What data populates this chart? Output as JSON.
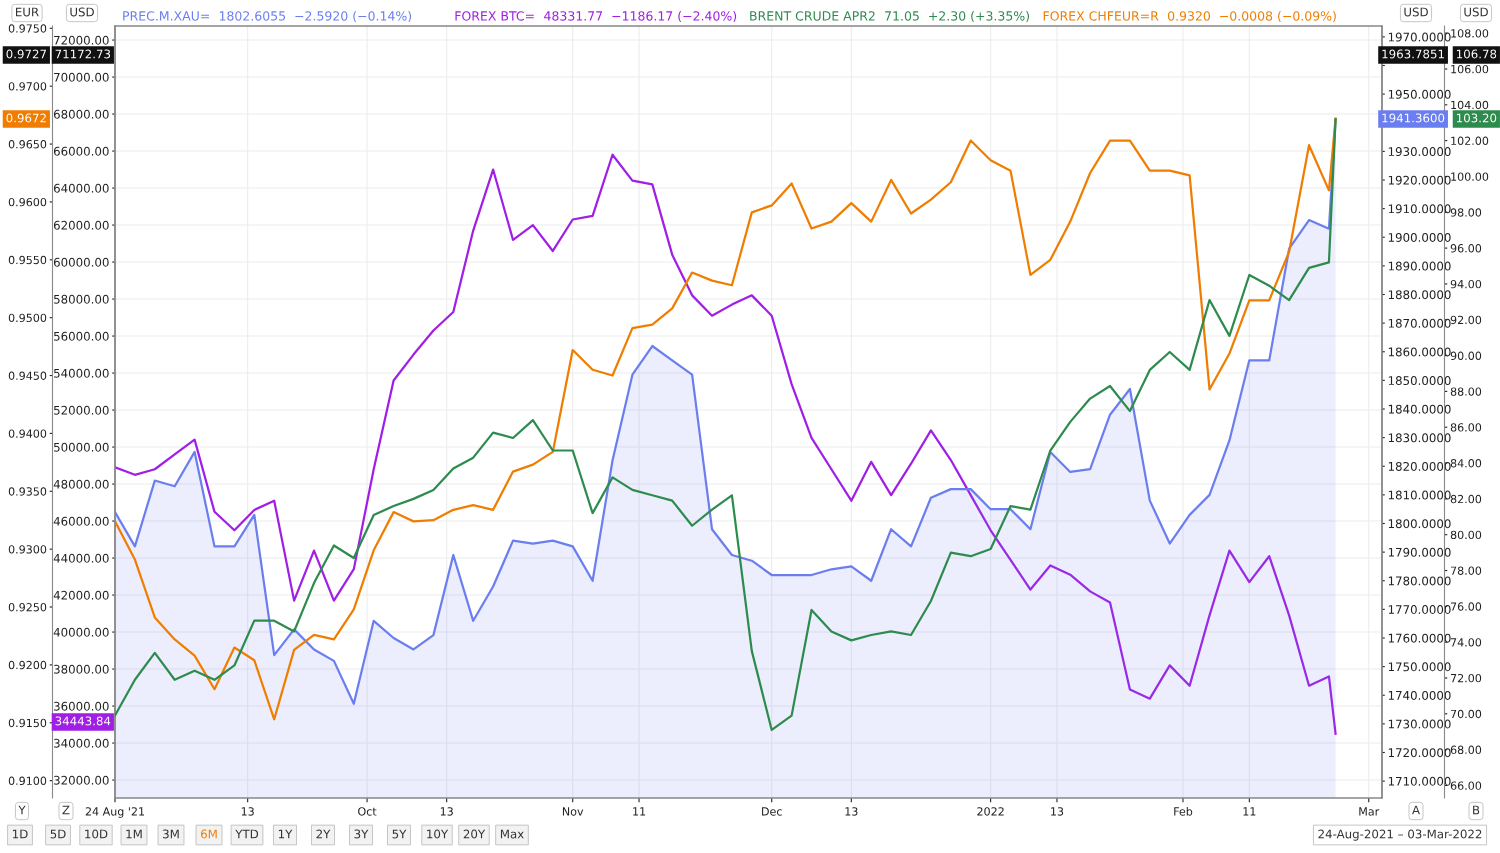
{
  "chart_data": [
    {
      "type": "line",
      "legend": "top",
      "grid": true,
      "x": [
        "2021-08-24",
        "2021-08-27",
        "2021-08-30",
        "2021-09-02",
        "2021-09-05",
        "2021-09-08",
        "2021-09-11",
        "2021-09-14",
        "2021-09-17",
        "2021-09-20",
        "2021-09-23",
        "2021-09-26",
        "2021-09-29",
        "2021-10-02",
        "2021-10-05",
        "2021-10-08",
        "2021-10-11",
        "2021-10-14",
        "2021-10-17",
        "2021-10-20",
        "2021-10-23",
        "2021-10-26",
        "2021-10-29",
        "2021-11-01",
        "2021-11-04",
        "2021-11-07",
        "2021-11-10",
        "2021-11-13",
        "2021-11-16",
        "2021-11-19",
        "2021-11-22",
        "2021-11-25",
        "2021-11-28",
        "2021-12-01",
        "2021-12-04",
        "2021-12-07",
        "2021-12-10",
        "2021-12-13",
        "2021-12-16",
        "2021-12-19",
        "2021-12-22",
        "2021-12-25",
        "2021-12-28",
        "2021-12-31",
        "2022-01-03",
        "2022-01-06",
        "2022-01-09",
        "2022-01-12",
        "2022-01-15",
        "2022-01-18",
        "2022-01-21",
        "2022-01-24",
        "2022-01-27",
        "2022-01-30",
        "2022-02-02",
        "2022-02-05",
        "2022-02-08",
        "2022-02-11",
        "2022-02-14",
        "2022-02-17",
        "2022-02-20",
        "2022-02-23",
        "2022-02-24"
      ],
      "series": [
        {
          "name": "PREC.M.XAU=",
          "type": "area",
          "axis": "y2",
          "color": "#6a7ef0",
          "values": [
            1804,
            1792,
            1815,
            1813,
            1825,
            1792,
            1792,
            1803,
            1754,
            1763,
            1756,
            1752,
            1737,
            1766,
            1760,
            1756,
            1761,
            1789,
            1766,
            1778,
            1794,
            1793,
            1794,
            1792,
            1780,
            1822,
            1852,
            1862,
            1857,
            1852,
            1798,
            1789,
            1787,
            1782,
            1782,
            1782,
            1784,
            1785,
            1780,
            1798,
            1792,
            1809,
            1812,
            1812,
            1805,
            1805,
            1798,
            1825,
            1818,
            1819,
            1838,
            1847,
            1808,
            1793,
            1803,
            1810,
            1829,
            1857,
            1857,
            1896,
            1906,
            1903,
            1941
          ]
        },
        {
          "name": "FOREX BTC=",
          "color": "#a01ee6",
          "values": [
            48900,
            48500,
            48800,
            49600,
            50400,
            46500,
            45500,
            46600,
            47100,
            41700,
            44400,
            41700,
            43400,
            48800,
            53600,
            55000,
            56300,
            57300,
            61700,
            65000,
            61200,
            62000,
            60600,
            62300,
            62500,
            65800,
            64400,
            64200,
            60400,
            58200,
            57100,
            57700,
            58200,
            57100,
            53400,
            50500,
            48800,
            47100,
            49200,
            47400,
            49100,
            50900,
            49300,
            47400,
            45500,
            43900,
            42300,
            43600,
            43100,
            42200,
            41600,
            36900,
            36400,
            38200,
            37100,
            40900,
            44400,
            42700,
            44100,
            40900,
            37100,
            37600,
            34500
          ]
        }
      ],
      "xlim": [
        "2021-08-24",
        "2022-03-03"
      ],
      "xticks": [
        {
          "value": "2021-08-24",
          "label": "24 Aug '21"
        },
        {
          "value": "2021-09-13",
          "label": "13"
        },
        {
          "value": "2021-10-01",
          "label": "Oct"
        },
        {
          "value": "2021-10-13",
          "label": "13"
        },
        {
          "value": "2021-11-01",
          "label": "Nov"
        },
        {
          "value": "2021-11-11",
          "label": "11"
        },
        {
          "value": "2021-12-01",
          "label": "Dec"
        },
        {
          "value": "2021-12-13",
          "label": "13"
        },
        {
          "value": "2022-01-03",
          "label": "2022"
        },
        {
          "value": "2022-01-13",
          "label": "13"
        },
        {
          "value": "2022-02-01",
          "label": "Feb"
        },
        {
          "value": "2022-02-11",
          "label": "11"
        },
        {
          "value": "2022-03-01",
          "label": "Mar"
        }
      ],
      "ylim": [
        31030,
        72760
      ],
      "yticks": [
        {
          "value": 32000,
          "label": "32000.00"
        },
        {
          "value": 34000,
          "label": "34000.00"
        },
        {
          "value": 36000,
          "label": "36000.00"
        },
        {
          "value": 38000,
          "label": "38000.00"
        },
        {
          "value": 40000,
          "label": "40000.00"
        },
        {
          "value": 42000,
          "label": "42000.00"
        },
        {
          "value": 44000,
          "label": "44000.00"
        },
        {
          "value": 46000,
          "label": "46000.00"
        },
        {
          "value": 48000,
          "label": "48000.00"
        },
        {
          "value": 50000,
          "label": "50000.00"
        },
        {
          "value": 52000,
          "label": "52000.00"
        },
        {
          "value": 54000,
          "label": "54000.00"
        },
        {
          "value": 56000,
          "label": "56000.00"
        },
        {
          "value": 58000,
          "label": "58000.00"
        },
        {
          "value": 60000,
          "label": "60000.00"
        },
        {
          "value": 62000,
          "label": "62000.00"
        },
        {
          "value": 64000,
          "label": "64000.00"
        },
        {
          "value": 66000,
          "label": "66000.00"
        },
        {
          "value": 68000,
          "label": "68000.00"
        },
        {
          "value": 70000,
          "label": "70000.00"
        },
        {
          "value": 72000,
          "label": "72000.00"
        }
      ],
      "y2lim": [
        1704.1,
        1973.8
      ],
      "y2ticks": [
        {
          "value": 1710,
          "label": "1710.0000"
        },
        {
          "value": 1720,
          "label": "1720.0000"
        },
        {
          "value": 1730,
          "label": "1730.0000"
        },
        {
          "value": 1740,
          "label": "1740.0000"
        },
        {
          "value": 1750,
          "label": "1750.0000"
        },
        {
          "value": 1760,
          "label": "1760.0000"
        },
        {
          "value": 1770,
          "label": "1770.0000"
        },
        {
          "value": 1780,
          "label": "1780.0000"
        },
        {
          "value": 1790,
          "label": "1790.0000"
        },
        {
          "value": 1800,
          "label": "1800.0000"
        },
        {
          "value": 1810,
          "label": "1810.0000"
        },
        {
          "value": 1820,
          "label": "1820.0000"
        },
        {
          "value": 1830,
          "label": "1830.0000"
        },
        {
          "value": 1840,
          "label": "1840.0000"
        },
        {
          "value": 1850,
          "label": "1850.0000"
        },
        {
          "value": 1860,
          "label": "1860.0000"
        },
        {
          "value": 1870,
          "label": "1870.0000"
        },
        {
          "value": 1880,
          "label": "1880.0000"
        },
        {
          "value": 1890,
          "label": "1890.0000"
        },
        {
          "value": 1900,
          "label": "1900.0000"
        },
        {
          "value": 1910,
          "label": "1910.0000"
        },
        {
          "value": 1920,
          "label": "1920.0000"
        },
        {
          "value": 1930,
          "label": "1930.0000"
        },
        {
          "value": 1940,
          "label": null
        },
        {
          "value": 1950,
          "label": "1950.0000"
        },
        {
          "value": 1960,
          "label": null
        },
        {
          "value": 1970,
          "label": "1970.0000"
        }
      ],
      "annotations": [
        "1802.6055  −2.5920 (−0.14%)",
        "48331.77  −1186.17 (−2.40%)",
        "71.05  +2.30 (+3.35%)",
        "0.9320  −0.0008 (−0.09%)",
        "0.9727",
        "71172.73",
        "1963.7851",
        "106.78",
        "0.9672",
        "34443.84",
        "1941.3600",
        "103.20",
        "EUR",
        "USD",
        "USD",
        "USD",
        "Y",
        "Z",
        "A",
        "B",
        "1D",
        "5D",
        "10D",
        "1M",
        "3M",
        "6M",
        "YTD",
        "1Y",
        "2Y",
        "3Y",
        "5Y",
        "10Y",
        "20Y",
        "Max",
        "24-Aug-2021 – 03-Mar-2022"
      ]
    },
    {
      "type": "line",
      "legend": "top",
      "tick_labels": "y",
      "x": [
        "2021-08-24",
        "2021-08-27",
        "2021-08-30",
        "2021-09-02",
        "2021-09-05",
        "2021-09-08",
        "2021-09-11",
        "2021-09-14",
        "2021-09-17",
        "2021-09-20",
        "2021-09-23",
        "2021-09-26",
        "2021-09-29",
        "2021-10-02",
        "2021-10-05",
        "2021-10-08",
        "2021-10-11",
        "2021-10-14",
        "2021-10-17",
        "2021-10-20",
        "2021-10-23",
        "2021-10-26",
        "2021-10-29",
        "2021-11-01",
        "2021-11-04",
        "2021-11-07",
        "2021-11-10",
        "2021-11-13",
        "2021-11-16",
        "2021-11-19",
        "2021-11-22",
        "2021-11-25",
        "2021-11-28",
        "2021-12-01",
        "2021-12-04",
        "2021-12-07",
        "2021-12-10",
        "2021-12-13",
        "2021-12-16",
        "2021-12-19",
        "2021-12-22",
        "2021-12-25",
        "2021-12-28",
        "2021-12-31",
        "2022-01-03",
        "2022-01-06",
        "2022-01-09",
        "2022-01-12",
        "2022-01-15",
        "2022-01-18",
        "2022-01-21",
        "2022-01-24",
        "2022-01-27",
        "2022-01-30",
        "2022-02-02",
        "2022-02-05",
        "2022-02-08",
        "2022-02-11",
        "2022-02-14",
        "2022-02-17",
        "2022-02-20",
        "2022-02-23",
        "2022-02-24"
      ],
      "series": [
        {
          "name": "BRENT CRUDE APR2",
          "axis": "y2",
          "color": "#2e8b4e",
          "values": [
            69.9,
            71.9,
            73.4,
            71.9,
            72.4,
            71.9,
            72.7,
            75.2,
            75.2,
            74.6,
            77.3,
            79.4,
            78.7,
            81.1,
            81.6,
            82.0,
            82.5,
            83.7,
            84.3,
            85.7,
            85.4,
            86.4,
            84.7,
            84.7,
            81.2,
            83.2,
            82.5,
            82.2,
            81.9,
            80.5,
            81.4,
            82.2,
            73.5,
            69.1,
            69.9,
            75.8,
            74.6,
            74.1,
            74.4,
            74.6,
            74.4,
            76.3,
            79.0,
            78.8,
            79.2,
            81.6,
            81.4,
            84.7,
            86.3,
            87.6,
            88.3,
            86.9,
            89.2,
            90.2,
            89.2,
            93.1,
            91.1,
            94.5,
            93.9,
            93.1,
            94.9,
            95.2,
            103.2
          ]
        },
        {
          "name": "FOREX CHFEUR=R",
          "color": "#f07d00",
          "values": [
            0.9324,
            0.9291,
            0.9241,
            0.9222,
            0.9208,
            0.9179,
            0.9215,
            0.9204,
            0.9153,
            0.9213,
            0.9226,
            0.9222,
            0.9248,
            0.9299,
            0.9332,
            0.9324,
            0.9325,
            0.9334,
            0.9338,
            0.9334,
            0.9367,
            0.9373,
            0.9384,
            0.9472,
            0.9455,
            0.945,
            0.9491,
            0.9494,
            0.9508,
            0.9539,
            0.9532,
            0.9528,
            0.9591,
            0.9597,
            0.9616,
            0.9577,
            0.9583,
            0.9599,
            0.9583,
            0.9619,
            0.959,
            0.9602,
            0.9617,
            0.9653,
            0.9636,
            0.9627,
            0.9537,
            0.955,
            0.9583,
            0.9625,
            0.9653,
            0.9653,
            0.9627,
            0.9627,
            0.9623,
            0.9438,
            0.9469,
            0.9515,
            0.9515,
            0.9557,
            0.9649,
            0.961,
            0.9672
          ]
        }
      ],
      "xlim": [
        "2021-08-24",
        "2022-03-03"
      ],
      "ylim": [
        0.9085,
        0.9752
      ],
      "yticks": [
        {
          "value": 0.91,
          "label": "0.9100"
        },
        {
          "value": 0.915,
          "label": "0.9150"
        },
        {
          "value": 0.92,
          "label": "0.9200"
        },
        {
          "value": 0.925,
          "label": "0.9250"
        },
        {
          "value": 0.93,
          "label": "0.9300"
        },
        {
          "value": 0.935,
          "label": "0.9350"
        },
        {
          "value": 0.94,
          "label": "0.9400"
        },
        {
          "value": 0.945,
          "label": "0.9450"
        },
        {
          "value": 0.95,
          "label": "0.9500"
        },
        {
          "value": 0.955,
          "label": "0.9550"
        },
        {
          "value": 0.96,
          "label": "0.9600"
        },
        {
          "value": 0.965,
          "label": "0.9650"
        },
        {
          "value": 0.97,
          "label": "0.9700"
        },
        {
          "value": 0.975,
          "label": "0.9750"
        }
      ],
      "y2lim": [
        65.3,
        108.4
      ],
      "y2ticks": [
        {
          "value": 66,
          "label": "66.00"
        },
        {
          "value": 68,
          "label": "68.00"
        },
        {
          "value": 70,
          "label": "70.00"
        },
        {
          "value": 72,
          "label": "72.00"
        },
        {
          "value": 74,
          "label": "74.00"
        },
        {
          "value": 76,
          "label": "76.00"
        },
        {
          "value": 78,
          "label": "78.00"
        },
        {
          "value": 80,
          "label": "80.00"
        },
        {
          "value": 82,
          "label": "82.00"
        },
        {
          "value": 84,
          "label": "84.00"
        },
        {
          "value": 86,
          "label": "86.00"
        },
        {
          "value": 88,
          "label": "88.00"
        },
        {
          "value": 90,
          "label": "90.00"
        },
        {
          "value": 92,
          "label": "92.00"
        },
        {
          "value": 94,
          "label": "94.00"
        },
        {
          "value": 96,
          "label": "96.00"
        },
        {
          "value": 98,
          "label": "98.00"
        },
        {
          "value": 100,
          "label": "100.00"
        },
        {
          "value": 102,
          "label": "102.00"
        },
        {
          "value": 104,
          "label": "104.00"
        },
        {
          "value": 106,
          "label": "106.00"
        },
        {
          "value": 108,
          "label": "108.00"
        }
      ]
    }
  ]
}
